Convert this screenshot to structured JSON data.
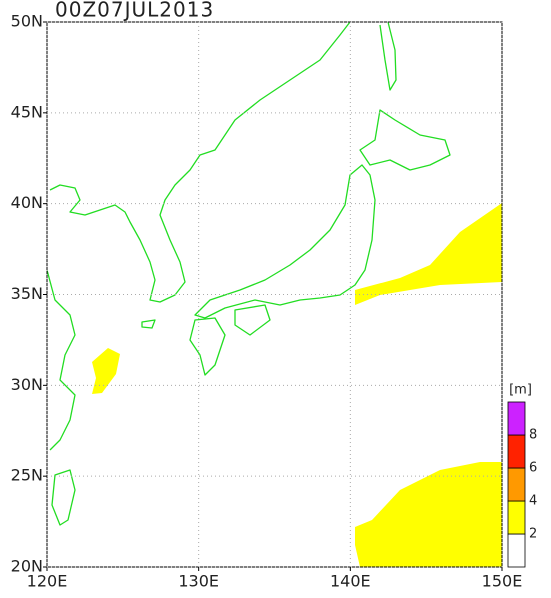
{
  "title": "00Z07JUL2013",
  "lon_range": [
    120,
    150
  ],
  "lat_range": [
    20,
    50
  ],
  "lon_ticks": [
    {
      "value": 120,
      "label": "120E"
    },
    {
      "value": 130,
      "label": "130E"
    },
    {
      "value": 140,
      "label": "140E"
    },
    {
      "value": 150,
      "label": "150E"
    }
  ],
  "lat_ticks": [
    {
      "value": 20,
      "label": "20N"
    },
    {
      "value": 25,
      "label": "25N"
    },
    {
      "value": 30,
      "label": "30N"
    },
    {
      "value": 35,
      "label": "35N"
    },
    {
      "value": 40,
      "label": "40N"
    },
    {
      "value": 45,
      "label": "45N"
    },
    {
      "value": 50,
      "label": "50N"
    }
  ],
  "colorbar": {
    "unit": "[m]",
    "levels": [
      2,
      4,
      6,
      8
    ],
    "colors": [
      "#ffffff",
      "#ffff00",
      "#ff9900",
      "#ff2200",
      "#cc22ff"
    ]
  }
}
